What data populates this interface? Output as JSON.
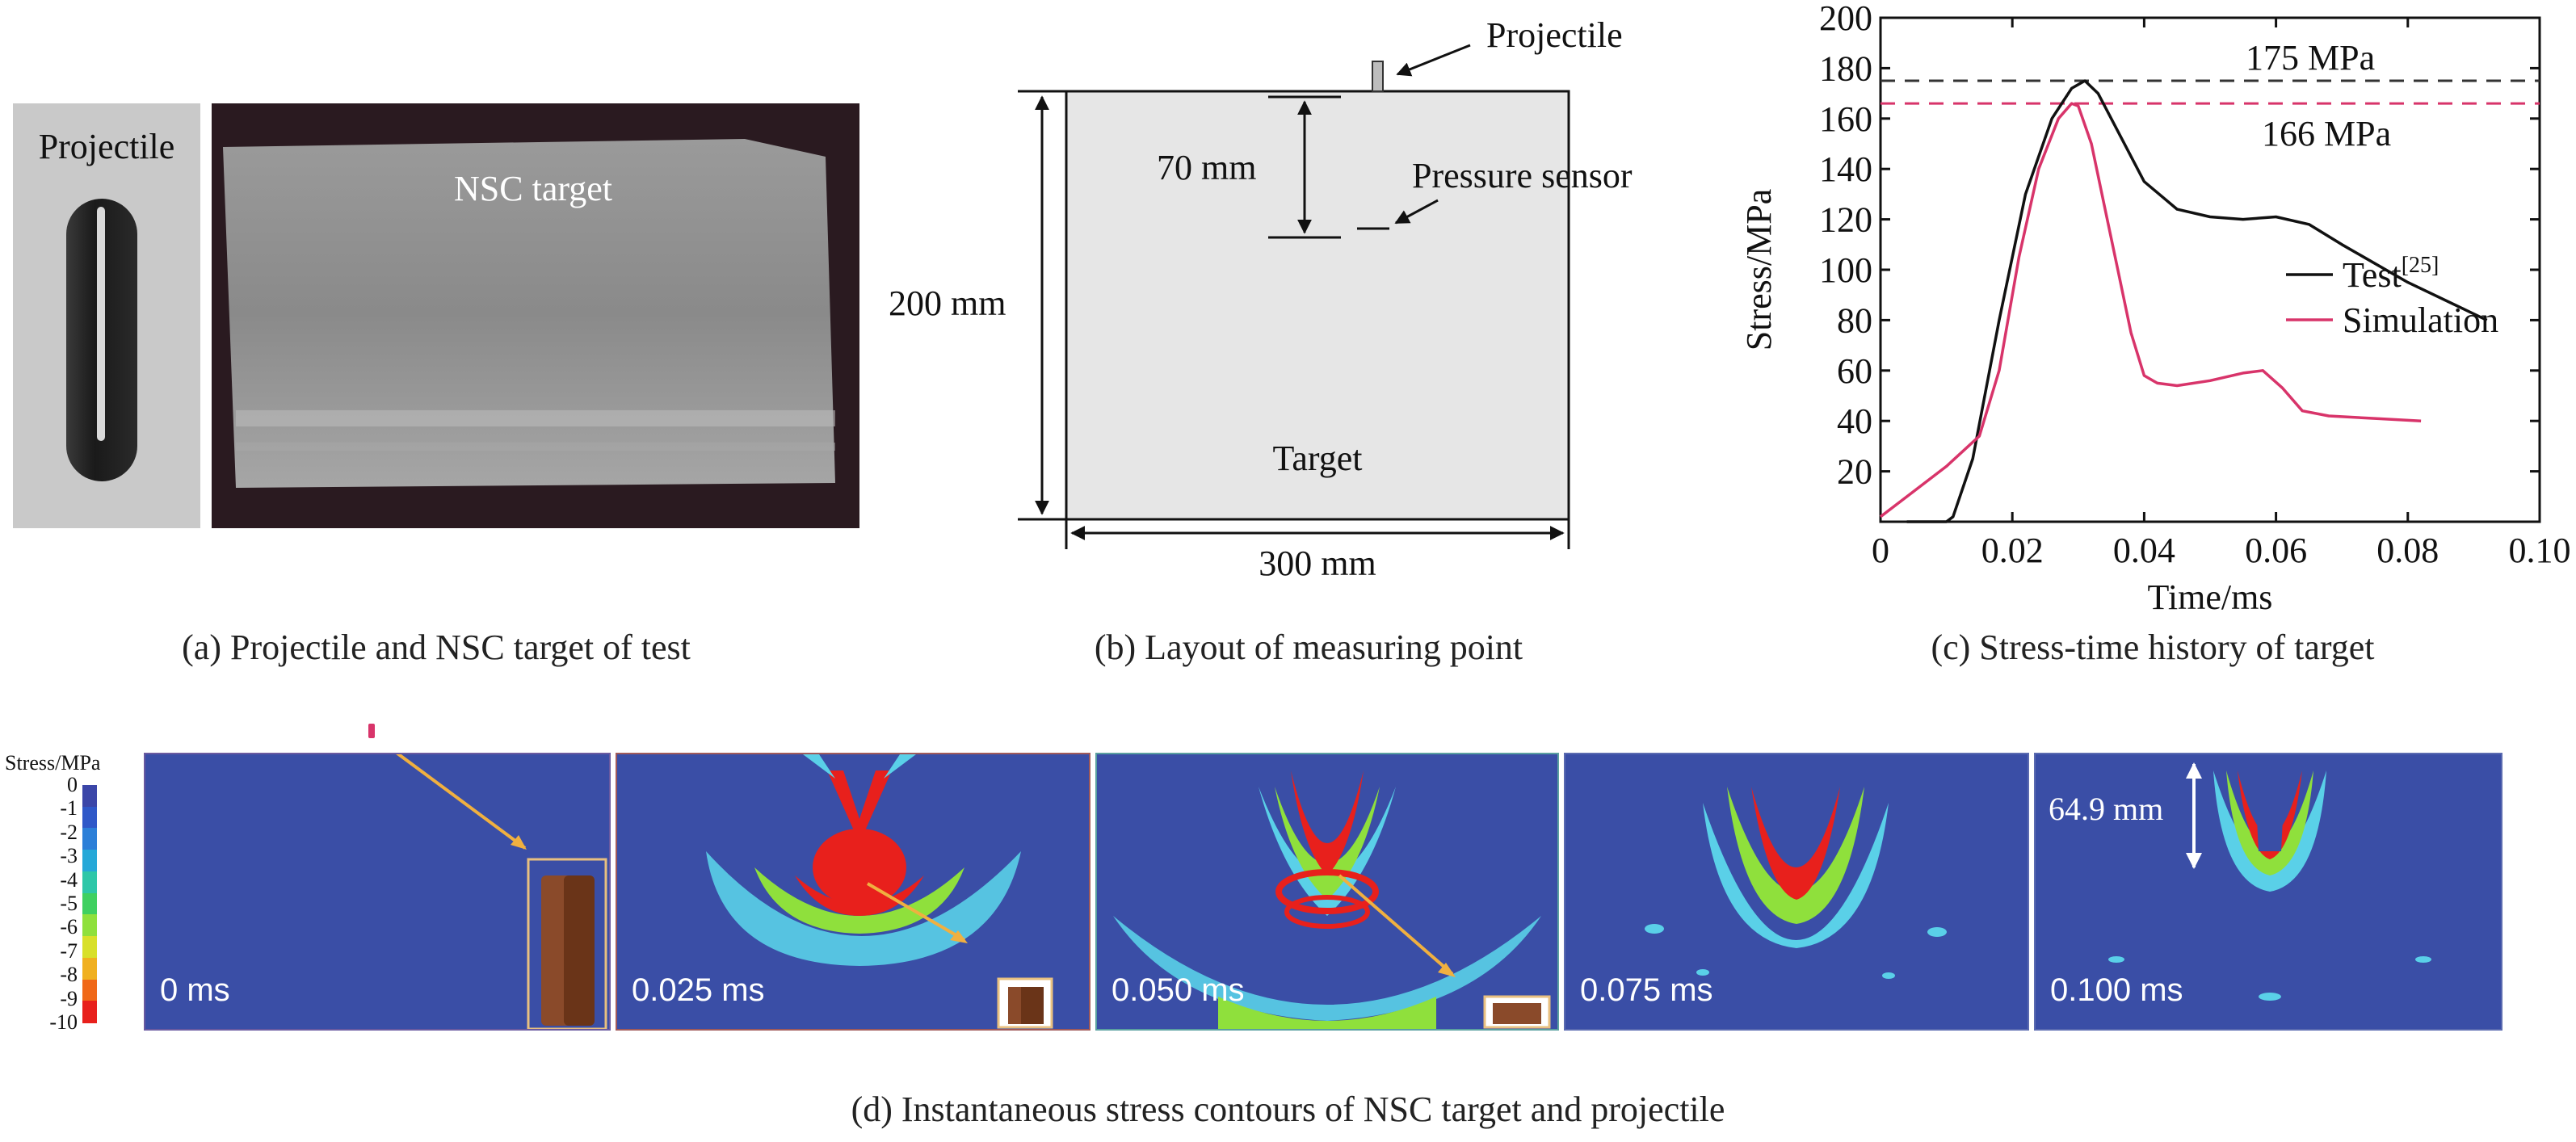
{
  "panel_a": {
    "projectile_label": "Projectile",
    "target_label": "NSC target",
    "caption": "(a) Projectile and NSC target of test"
  },
  "panel_b": {
    "projectile_label": "Projectile",
    "depth_label": "70 mm",
    "sensor_label": "Pressure sensor",
    "height_label": "200 mm",
    "width_label": "300 mm",
    "target_label": "Target",
    "caption": "(b) Layout of measuring point"
  },
  "panel_c": {
    "caption": "(c) Stress-time history of target",
    "peak_test_label": "175 MPa",
    "peak_sim_label": "166 MPa"
  },
  "panel_d": {
    "colorbar_title": "Stress/MPa",
    "colorbar_ticks": [
      "0",
      "-1",
      "-2",
      "-3",
      "-4",
      "-5",
      "-6",
      "-7",
      "-8",
      "-9",
      "-10"
    ],
    "colorbar_colors": [
      "#3b46a8",
      "#2f58c8",
      "#2c7fd8",
      "#25a8d8",
      "#2ec7a8",
      "#3fd060",
      "#8fe03c",
      "#d8e02a",
      "#f0b020",
      "#f06818",
      "#e8201c"
    ],
    "frames": [
      "0 ms",
      "0.025 ms",
      "0.050 ms",
      "0.075 ms",
      "0.100 ms"
    ],
    "penetration_label": "64.9 mm",
    "caption": "(d) Instantaneous stress contours of NSC target and projectile"
  },
  "chart_data": {
    "type": "line",
    "xlabel": "Time/ms",
    "ylabel": "Stress/MPa",
    "xlim": [
      0,
      0.1
    ],
    "ylim": [
      0,
      200
    ],
    "xticks": [
      "0",
      "0.02",
      "0.04",
      "0.06",
      "0.08",
      "0.10"
    ],
    "yticks": [
      "20",
      "40",
      "60",
      "80",
      "100",
      "120",
      "140",
      "160",
      "180",
      "200"
    ],
    "legend_position": "right",
    "reference_lines": [
      {
        "label": "175 MPa",
        "y": 175,
        "color": "#333333"
      },
      {
        "label": "166 MPa",
        "y": 166,
        "color": "#d8346a"
      }
    ],
    "series": [
      {
        "name": "Test",
        "name_superscript": "[25]",
        "color": "#111111",
        "x": [
          0.004,
          0.008,
          0.01,
          0.011,
          0.014,
          0.018,
          0.022,
          0.026,
          0.029,
          0.031,
          0.033,
          0.036,
          0.04,
          0.045,
          0.05,
          0.055,
          0.06,
          0.065,
          0.07,
          0.08,
          0.092
        ],
        "y": [
          0,
          0,
          0,
          2,
          25,
          80,
          130,
          160,
          172,
          175,
          170,
          155,
          135,
          124,
          121,
          120,
          121,
          118,
          110,
          95,
          80
        ]
      },
      {
        "name": "Simulation",
        "color": "#d8346a",
        "x": [
          0.0,
          0.005,
          0.01,
          0.015,
          0.018,
          0.021,
          0.024,
          0.027,
          0.029,
          0.03,
          0.032,
          0.034,
          0.036,
          0.038,
          0.04,
          0.042,
          0.045,
          0.05,
          0.055,
          0.058,
          0.061,
          0.064,
          0.068,
          0.075,
          0.082
        ],
        "y": [
          2,
          12,
          22,
          34,
          60,
          105,
          140,
          160,
          166,
          165,
          150,
          125,
          100,
          75,
          58,
          55,
          54,
          56,
          59,
          60,
          53,
          44,
          42,
          41,
          40
        ]
      }
    ]
  }
}
